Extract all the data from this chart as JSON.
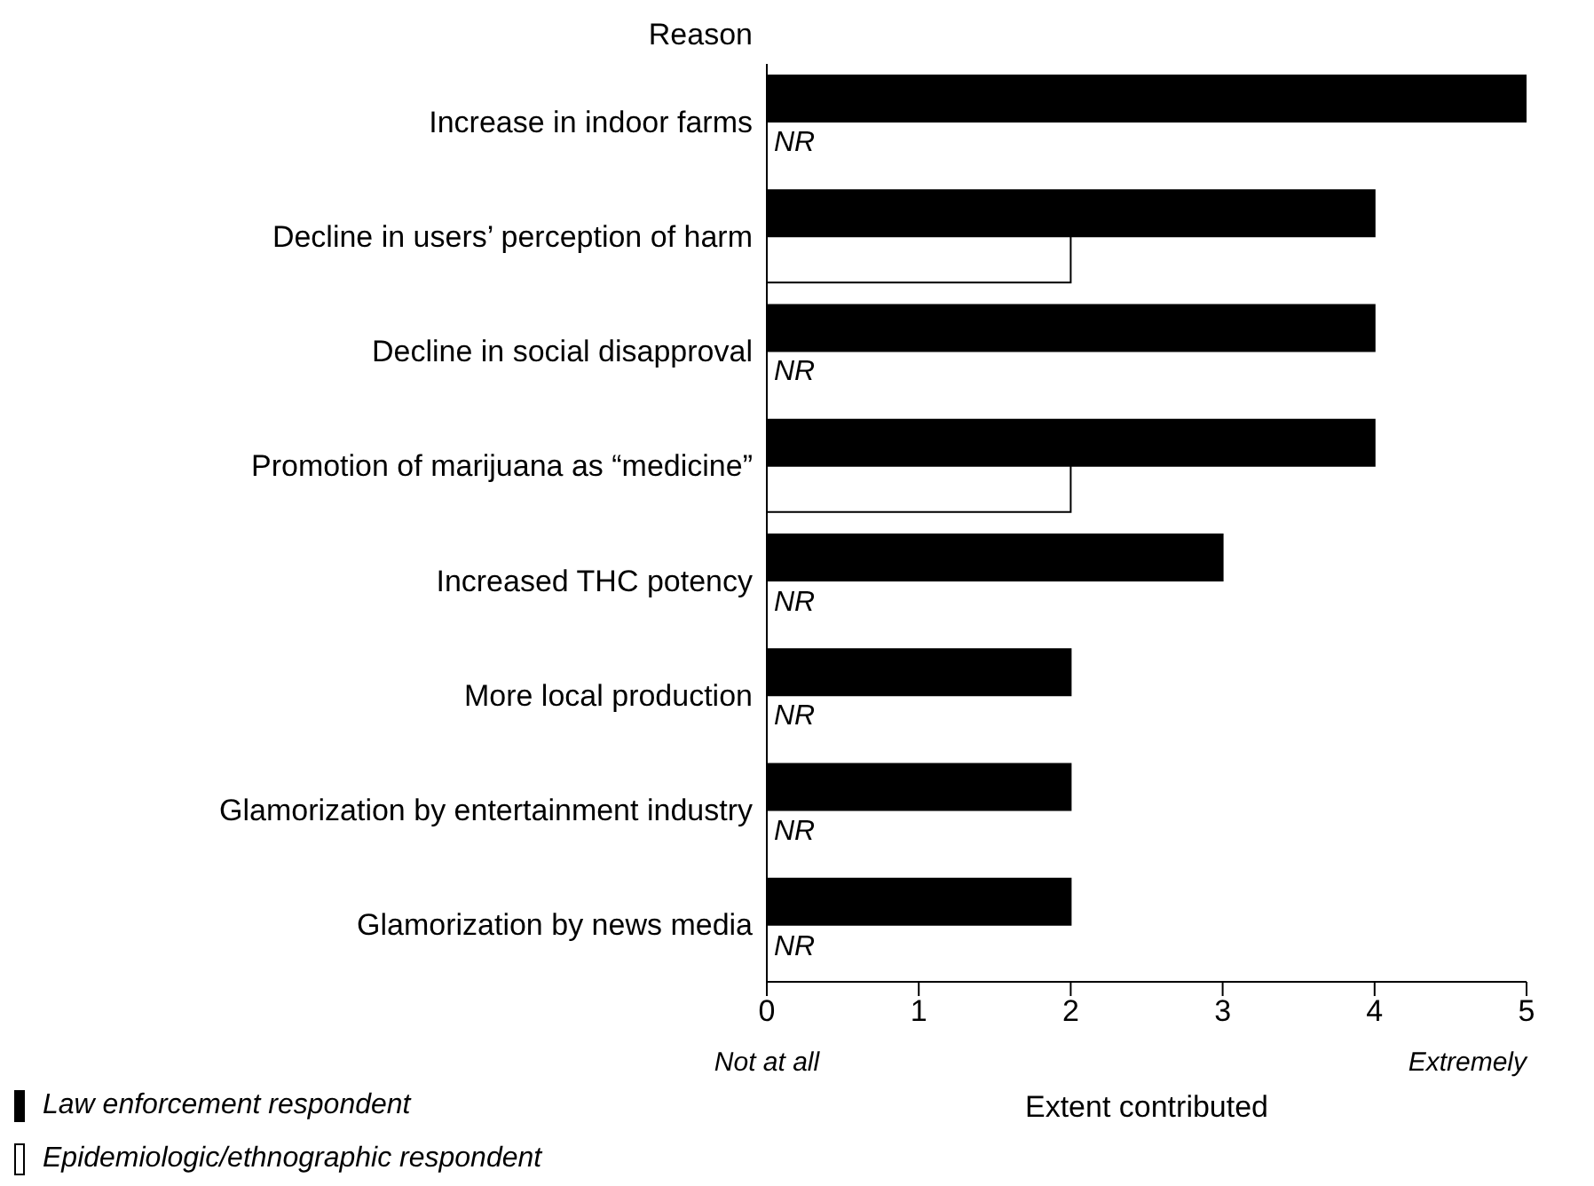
{
  "chart_data": {
    "type": "bar",
    "orientation": "horizontal",
    "ylabel": "Reason",
    "xlabel": "Extent contributed",
    "categories": [
      "Increase in indoor farms",
      "Decline in users’ perception of harm",
      "Decline in social disapproval",
      "Promotion of marijuana as “medicine”",
      "Increased THC potency",
      "More local production",
      "Glamorization by entertainment industry",
      "Glamorization by news media"
    ],
    "series": [
      {
        "name": "Law enforcement respondent",
        "color": "#000000",
        "values": [
          5,
          4,
          4,
          4,
          3,
          2,
          2,
          2
        ]
      },
      {
        "name": "Epidemiologic/ethnographic respondent",
        "color": "#ffffff",
        "values": [
          null,
          2,
          null,
          2,
          null,
          null,
          null,
          null
        ],
        "value_labels": [
          "NR",
          null,
          "NR",
          null,
          "NR",
          "NR",
          "NR",
          "NR"
        ]
      }
    ],
    "xlim": [
      0,
      5
    ],
    "xticks": [
      0,
      1,
      2,
      3,
      4,
      5
    ],
    "annotations": [
      "Not at all",
      "Extremely"
    ],
    "grid": false,
    "legend": "bottom left"
  }
}
